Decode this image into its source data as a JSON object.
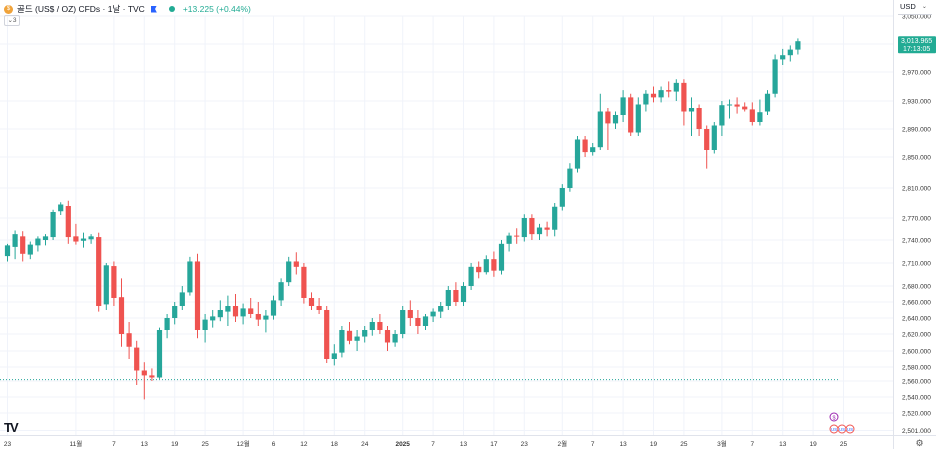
{
  "header": {
    "title": "골드 (US$ / OZ) CFDs · 1날 · TVC",
    "coin_symbol": "$",
    "change": "+13.225 (+0.44%)",
    "collapse_label": "3",
    "currency": "USD"
  },
  "price_label": {
    "price": "3,013.965",
    "countdown": "17:13:05"
  },
  "colors": {
    "up": "#26a69a",
    "down": "#ef5350",
    "accent": "#22ab94",
    "grid": "#f0f3fa",
    "dotted": "#26a69a"
  },
  "event_badges": [
    "$",
    "US",
    "US",
    "US"
  ],
  "chart_data": {
    "type": "candlestick",
    "title": "",
    "ylim": [
      2501,
      3050
    ],
    "y_ticks": [
      2501,
      2520,
      2540,
      2560,
      2580,
      2600,
      2620,
      2640,
      2660,
      2680,
      2710,
      2740,
      2770,
      2810,
      2850,
      2890,
      2930,
      2970,
      3010,
      3050
    ],
    "y_tick_labels": [
      "2,501.000",
      "2,520.000",
      "2,540.000",
      "2,560.000",
      "2,580.000",
      "2,600.000",
      "2,620.000",
      "2,640.000",
      "2,660.000",
      "2,680.000",
      "2,710.000",
      "2,740.000",
      "2,770.000",
      "2,810.000",
      "2,850.000",
      "2,890.000",
      "2,930.000",
      "2,970.000",
      "3,010.000",
      "3,050.000"
    ],
    "x_tick_labels": [
      "23",
      "11월",
      "7",
      "13",
      "19",
      "25",
      "12월",
      "6",
      "12",
      "18",
      "24",
      "2025",
      "7",
      "13",
      "17",
      "23",
      "2월",
      "7",
      "13",
      "19",
      "25",
      "3월",
      "7",
      "13",
      "19",
      "25"
    ],
    "x_tick_index": [
      0,
      9,
      14,
      18,
      22,
      26,
      31,
      35,
      39,
      43,
      47,
      52,
      56,
      60,
      64,
      68,
      73,
      77,
      81,
      85,
      89,
      94,
      98,
      102,
      106,
      110
    ],
    "reference_level": 2562,
    "last_price": 3013.965,
    "candles": [
      [
        2719,
        2735,
        2712,
        2733
      ],
      [
        2731,
        2753,
        2715,
        2748
      ],
      [
        2745,
        2752,
        2712,
        2722
      ],
      [
        2721,
        2738,
        2715,
        2734
      ],
      [
        2733,
        2745,
        2725,
        2742
      ],
      [
        2740,
        2748,
        2733,
        2745
      ],
      [
        2744,
        2781,
        2740,
        2778
      ],
      [
        2779,
        2791,
        2774,
        2788
      ],
      [
        2786,
        2793,
        2735,
        2744
      ],
      [
        2745,
        2762,
        2734,
        2738
      ],
      [
        2739,
        2750,
        2730,
        2742
      ],
      [
        2741,
        2748,
        2735,
        2745
      ],
      [
        2744,
        2750,
        2648,
        2655
      ],
      [
        2657,
        2710,
        2650,
        2707
      ],
      [
        2706,
        2712,
        2655,
        2665
      ],
      [
        2666,
        2690,
        2605,
        2620
      ],
      [
        2621,
        2635,
        2590,
        2605
      ],
      [
        2604,
        2612,
        2555,
        2575
      ],
      [
        2575,
        2586,
        2537,
        2568
      ],
      [
        2568,
        2578,
        2560,
        2565
      ],
      [
        2565,
        2628,
        2563,
        2625
      ],
      [
        2625,
        2645,
        2615,
        2640
      ],
      [
        2640,
        2660,
        2632,
        2655
      ],
      [
        2655,
        2680,
        2650,
        2672
      ],
      [
        2672,
        2718,
        2668,
        2712
      ],
      [
        2712,
        2722,
        2615,
        2625
      ],
      [
        2625,
        2645,
        2610,
        2638
      ],
      [
        2637,
        2650,
        2628,
        2642
      ],
      [
        2641,
        2662,
        2636,
        2650
      ],
      [
        2648,
        2668,
        2630,
        2655
      ],
      [
        2655,
        2670,
        2635,
        2642
      ],
      [
        2642,
        2658,
        2632,
        2652
      ],
      [
        2652,
        2665,
        2640,
        2645
      ],
      [
        2645,
        2660,
        2630,
        2638
      ],
      [
        2638,
        2650,
        2622,
        2643
      ],
      [
        2643,
        2668,
        2638,
        2662
      ],
      [
        2662,
        2690,
        2655,
        2685
      ],
      [
        2685,
        2718,
        2680,
        2712
      ],
      [
        2712,
        2724,
        2695,
        2705
      ],
      [
        2705,
        2710,
        2658,
        2665
      ],
      [
        2665,
        2672,
        2650,
        2655
      ],
      [
        2655,
        2665,
        2645,
        2650
      ],
      [
        2650,
        2655,
        2585,
        2590
      ],
      [
        2590,
        2608,
        2582,
        2597
      ],
      [
        2598,
        2630,
        2592,
        2625
      ],
      [
        2624,
        2635,
        2608,
        2612
      ],
      [
        2612,
        2625,
        2600,
        2617
      ],
      [
        2617,
        2630,
        2610,
        2625
      ],
      [
        2625,
        2640,
        2618,
        2635
      ],
      [
        2635,
        2645,
        2620,
        2625
      ],
      [
        2625,
        2630,
        2600,
        2610
      ],
      [
        2610,
        2625,
        2605,
        2620
      ],
      [
        2620,
        2655,
        2615,
        2650
      ],
      [
        2650,
        2662,
        2630,
        2640
      ],
      [
        2640,
        2650,
        2620,
        2630
      ],
      [
        2630,
        2645,
        2625,
        2642
      ],
      [
        2642,
        2652,
        2635,
        2648
      ],
      [
        2648,
        2660,
        2640,
        2655
      ],
      [
        2655,
        2680,
        2650,
        2675
      ],
      [
        2675,
        2685,
        2655,
        2660
      ],
      [
        2660,
        2685,
        2655,
        2680
      ],
      [
        2680,
        2710,
        2675,
        2705
      ],
      [
        2705,
        2712,
        2690,
        2698
      ],
      [
        2698,
        2720,
        2695,
        2715
      ],
      [
        2715,
        2725,
        2692,
        2700
      ],
      [
        2700,
        2740,
        2695,
        2735
      ],
      [
        2735,
        2750,
        2725,
        2746
      ],
      [
        2746,
        2756,
        2735,
        2745
      ],
      [
        2744,
        2775,
        2738,
        2770
      ],
      [
        2770,
        2775,
        2740,
        2748
      ],
      [
        2748,
        2762,
        2740,
        2757
      ],
      [
        2757,
        2765,
        2745,
        2754
      ],
      [
        2754,
        2790,
        2745,
        2785
      ],
      [
        2785,
        2815,
        2780,
        2810
      ],
      [
        2810,
        2842,
        2805,
        2835
      ],
      [
        2835,
        2880,
        2830,
        2875
      ],
      [
        2875,
        2880,
        2850,
        2857
      ],
      [
        2857,
        2870,
        2852,
        2864
      ],
      [
        2864,
        2940,
        2860,
        2915
      ],
      [
        2915,
        2920,
        2860,
        2898
      ],
      [
        2898,
        2915,
        2890,
        2910
      ],
      [
        2910,
        2945,
        2900,
        2935
      ],
      [
        2935,
        2940,
        2880,
        2885
      ],
      [
        2885,
        2935,
        2880,
        2925
      ],
      [
        2925,
        2945,
        2915,
        2940
      ],
      [
        2940,
        2950,
        2928,
        2935
      ],
      [
        2935,
        2950,
        2928,
        2945
      ],
      [
        2945,
        2957,
        2935,
        2943
      ],
      [
        2943,
        2960,
        2930,
        2955
      ],
      [
        2955,
        2960,
        2895,
        2915
      ],
      [
        2915,
        2935,
        2880,
        2920
      ],
      [
        2920,
        2925,
        2880,
        2890
      ],
      [
        2890,
        2895,
        2835,
        2860
      ],
      [
        2860,
        2900,
        2855,
        2895
      ],
      [
        2895,
        2930,
        2880,
        2924
      ],
      [
        2924,
        2932,
        2905,
        2925
      ],
      [
        2925,
        2935,
        2912,
        2922
      ],
      [
        2922,
        2928,
        2915,
        2918
      ],
      [
        2918,
        2928,
        2895,
        2900
      ],
      [
        2900,
        2932,
        2895,
        2914
      ],
      [
        2915,
        2945,
        2910,
        2940
      ],
      [
        2940,
        2995,
        2935,
        2988
      ],
      [
        2988,
        3003,
        2980,
        2994
      ],
      [
        2994,
        3008,
        2985,
        3002
      ],
      [
        3002,
        3018,
        2995,
        3014
      ]
    ]
  }
}
